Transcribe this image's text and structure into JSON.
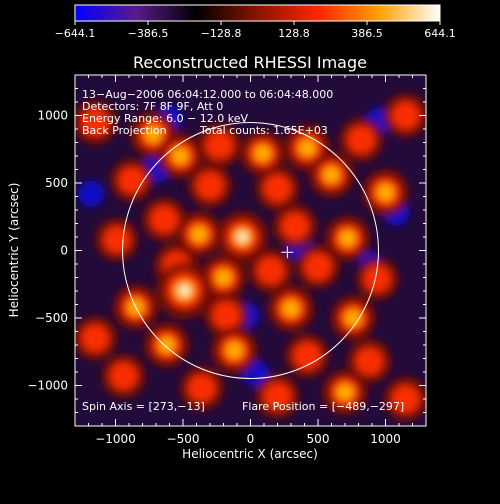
{
  "chart_data": {
    "type": "heatmap",
    "title": "Reconstructed RHESSI Image",
    "xlabel": "Heliocentric X (arcsec)",
    "ylabel": "Heliocentric Y (arcsec)",
    "xlim": [
      -1300,
      1300
    ],
    "ylim": [
      -1300,
      1300
    ],
    "xticks": [
      -1000,
      -500,
      0,
      500,
      1000
    ],
    "xtick_labels": [
      "−1000",
      "−500",
      "0",
      "500",
      "1000"
    ],
    "yticks": [
      -1000,
      -500,
      0,
      500,
      1000
    ],
    "ytick_labels": [
      "−1000",
      "−500",
      "0",
      "500",
      "1000"
    ],
    "colorbar": {
      "ticks": [
        -644.1,
        -386.5,
        -128.8,
        128.8,
        386.5,
        644.1
      ],
      "tick_labels": [
        "−644.1",
        "−386.5",
        "−128.8",
        "128.8",
        "386.5",
        "644.1"
      ],
      "range": [
        -644.1,
        644.1
      ],
      "colors": [
        "#0000ff",
        "#5a1a8c",
        "#000000",
        "#8a1400",
        "#ff2600",
        "#ffa000",
        "#ffffff"
      ]
    },
    "annotations": {
      "line1": "13−Aug−2006 06:04:12.000 to 06:04:48.000",
      "line2": "Detectors: 7F 8F 9F, Att 0",
      "line3": "Energy Range: 6.0 − 12.0 keV",
      "line4a": "Back Projection",
      "line4b": "Total counts: 1.65E+03",
      "spin_axis": "Spin Axis = [273,−13]",
      "flare_position": "Flare Position = [−489,−297]"
    },
    "solar_disk_radius": 948,
    "marker": {
      "x": 273,
      "y": -13
    },
    "blobs": [
      {
        "x": -720,
        "y": 860,
        "a": 0.6
      },
      {
        "x": -520,
        "y": 700,
        "a": 0.55
      },
      {
        "x": -230,
        "y": 780,
        "a": 0.5
      },
      {
        "x": 90,
        "y": 720,
        "a": 0.55
      },
      {
        "x": 420,
        "y": 760,
        "a": 0.6
      },
      {
        "x": 820,
        "y": 820,
        "a": 0.5
      },
      {
        "x": -880,
        "y": 520,
        "a": 0.45
      },
      {
        "x": -300,
        "y": 480,
        "a": 0.5
      },
      {
        "x": 200,
        "y": 460,
        "a": 0.5
      },
      {
        "x": 600,
        "y": 560,
        "a": 0.55
      },
      {
        "x": 1000,
        "y": 430,
        "a": 0.6
      },
      {
        "x": -640,
        "y": 230,
        "a": 0.5
      },
      {
        "x": -380,
        "y": 120,
        "a": 0.55
      },
      {
        "x": -60,
        "y": 100,
        "a": 0.8
      },
      {
        "x": 330,
        "y": 180,
        "a": 0.5
      },
      {
        "x": 720,
        "y": 90,
        "a": 0.55
      },
      {
        "x": -990,
        "y": 80,
        "a": 0.45
      },
      {
        "x": -550,
        "y": -110,
        "a": 0.5
      },
      {
        "x": -200,
        "y": -200,
        "a": 0.55
      },
      {
        "x": 150,
        "y": -150,
        "a": 0.5
      },
      {
        "x": 500,
        "y": -120,
        "a": 0.5
      },
      {
        "x": 940,
        "y": -210,
        "a": 0.45
      },
      {
        "x": -489,
        "y": -297,
        "a": 1.0
      },
      {
        "x": -850,
        "y": -420,
        "a": 0.55
      },
      {
        "x": -180,
        "y": -480,
        "a": 0.5
      },
      {
        "x": 300,
        "y": -430,
        "a": 0.6
      },
      {
        "x": 760,
        "y": -500,
        "a": 0.55
      },
      {
        "x": -620,
        "y": -700,
        "a": 0.55
      },
      {
        "x": -120,
        "y": -740,
        "a": 0.6
      },
      {
        "x": 420,
        "y": -780,
        "a": 0.5
      },
      {
        "x": 880,
        "y": -820,
        "a": 0.5
      },
      {
        "x": -940,
        "y": -930,
        "a": 0.5
      },
      {
        "x": -360,
        "y": -1020,
        "a": 0.5
      },
      {
        "x": 200,
        "y": -1080,
        "a": 0.5
      },
      {
        "x": 700,
        "y": -1050,
        "a": 0.55
      },
      {
        "x": -1150,
        "y": 950,
        "a": 0.5
      },
      {
        "x": 1150,
        "y": 1000,
        "a": 0.5
      },
      {
        "x": -1150,
        "y": -650,
        "a": 0.5
      },
      {
        "x": 1150,
        "y": -1100,
        "a": 0.5
      }
    ],
    "lows": [
      {
        "x": 1080,
        "y": 280
      },
      {
        "x": -1180,
        "y": 420
      },
      {
        "x": -700,
        "y": 600
      },
      {
        "x": 360,
        "y": 40
      },
      {
        "x": 900,
        "y": -110
      },
      {
        "x": -30,
        "y": -480
      },
      {
        "x": 40,
        "y": -910
      },
      {
        "x": -600,
        "y": 980
      },
      {
        "x": 950,
        "y": 960
      }
    ]
  }
}
